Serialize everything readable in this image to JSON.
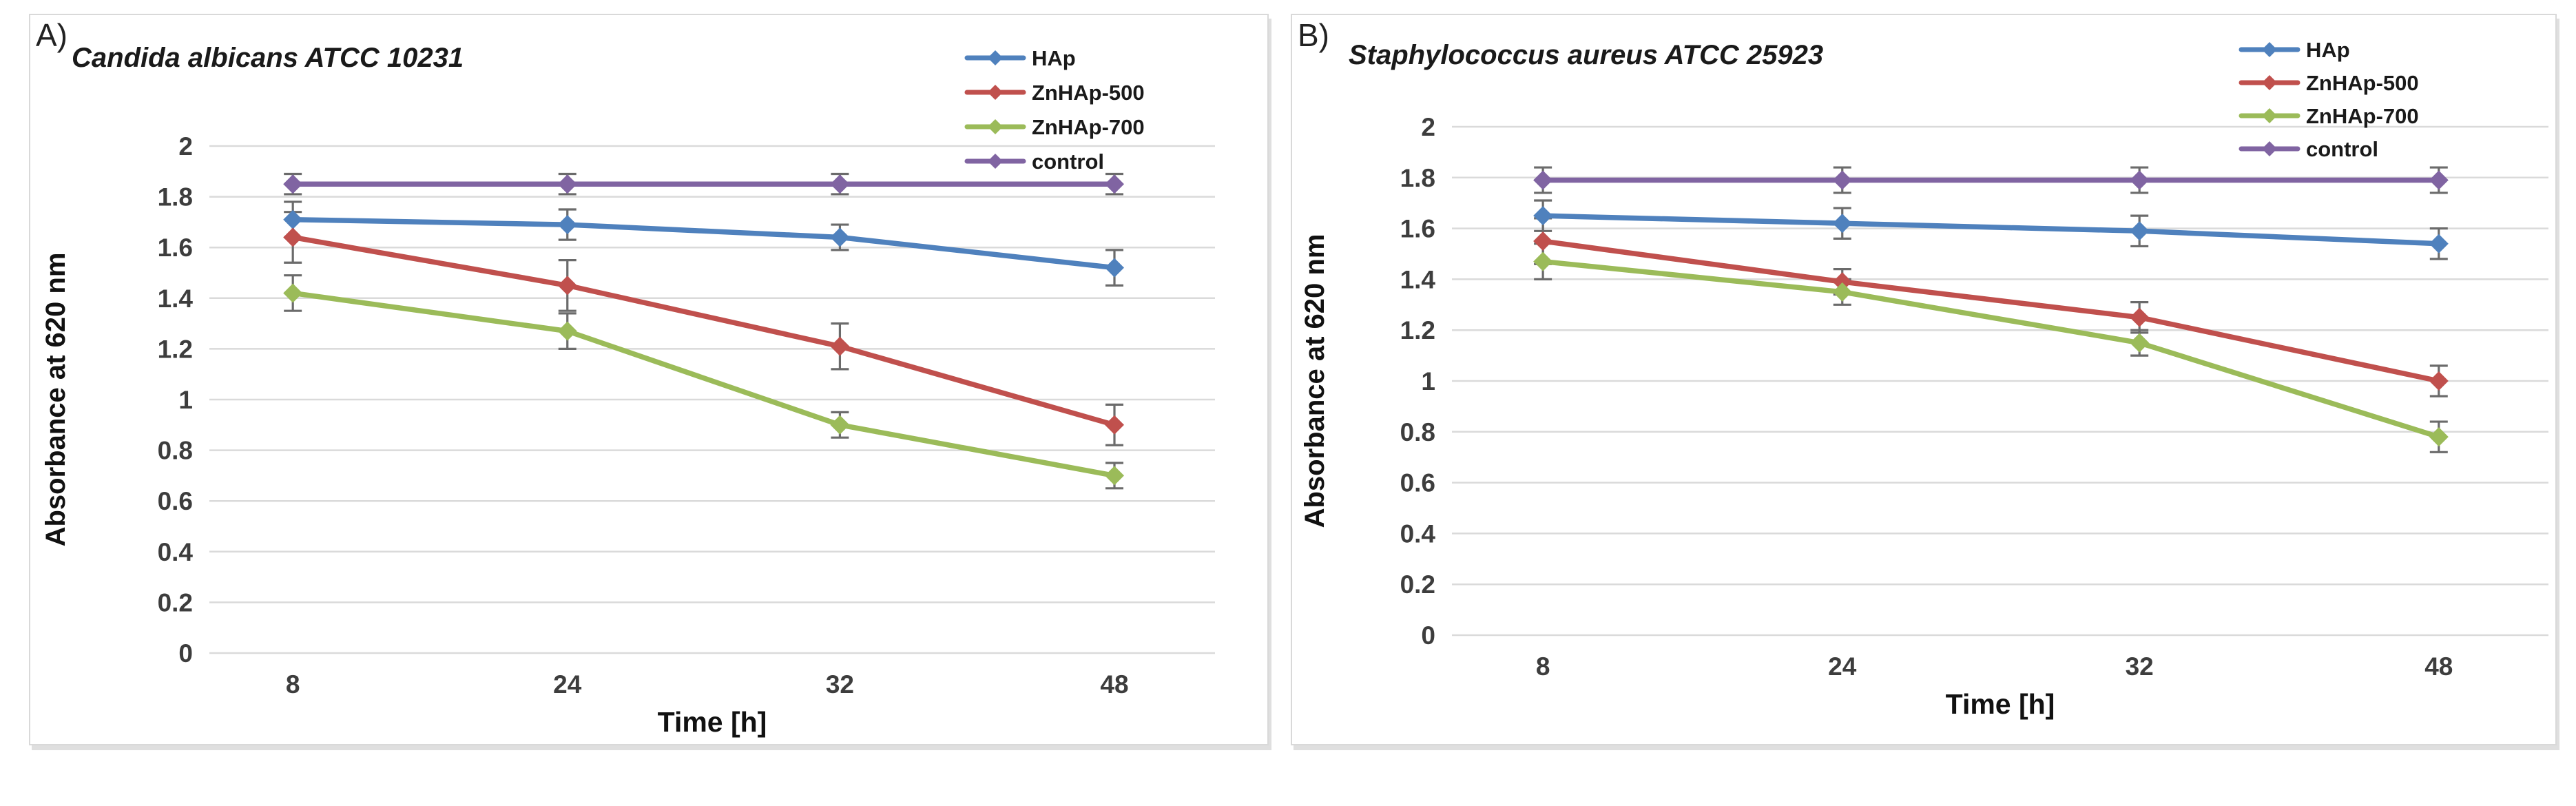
{
  "figure_type": "two-panel line chart with error bars",
  "chart_data": [
    {
      "type": "line",
      "panel_label": "A)",
      "title": "Candida albicans ATCC 10231",
      "xlabel": "Time [h]",
      "ylabel": "Absorbance at 620 nm",
      "categories": [
        "8",
        "24",
        "32",
        "48"
      ],
      "ylim": [
        0,
        2
      ],
      "yticks": [
        "2",
        "1.8",
        "1.6",
        "1.4",
        "1.2",
        "1",
        "0.8",
        "0.6",
        "0.4",
        "0.2",
        "0"
      ],
      "grid": "horizontal",
      "legend_position": "top-right",
      "marker": "diamond",
      "series": [
        {
          "name": "HAp",
          "color": "#4F81BD",
          "values": [
            1.71,
            1.69,
            1.64,
            1.52
          ],
          "errors": [
            0.07,
            0.06,
            0.05,
            0.07
          ]
        },
        {
          "name": "ZnHAp-500",
          "color": "#C0504D",
          "values": [
            1.64,
            1.45,
            1.21,
            0.9
          ],
          "errors": [
            0.1,
            0.1,
            0.09,
            0.08
          ]
        },
        {
          "name": "ZnHAp-700",
          "color": "#9BBB59",
          "values": [
            1.42,
            1.27,
            0.9,
            0.7
          ],
          "errors": [
            0.07,
            0.07,
            0.05,
            0.05
          ]
        },
        {
          "name": "control",
          "color": "#8064A2",
          "values": [
            1.85,
            1.85,
            1.85,
            1.85
          ],
          "errors": [
            0.04,
            0.04,
            0.04,
            0.04
          ]
        }
      ]
    },
    {
      "type": "line",
      "panel_label": "B)",
      "title": "Staphylococcus aureus ATCC 25923",
      "xlabel": "Time [h]",
      "ylabel": "Absorbance at 620 nm",
      "categories": [
        "8",
        "24",
        "32",
        "48"
      ],
      "ylim": [
        0,
        2
      ],
      "yticks": [
        "2",
        "1.8",
        "1.6",
        "1.4",
        "1.2",
        "1",
        "0.8",
        "0.6",
        "0.4",
        "0.2",
        "0"
      ],
      "grid": "horizontal",
      "legend_position": "top-right",
      "marker": "diamond",
      "series": [
        {
          "name": "HAp",
          "color": "#4F81BD",
          "values": [
            1.65,
            1.62,
            1.59,
            1.54
          ],
          "errors": [
            0.06,
            0.06,
            0.06,
            0.06
          ]
        },
        {
          "name": "ZnHAp-500",
          "color": "#C0504D",
          "values": [
            1.55,
            1.39,
            1.25,
            1.0
          ],
          "errors": [
            0.09,
            0.05,
            0.06,
            0.06
          ]
        },
        {
          "name": "ZnHAp-700",
          "color": "#9BBB59",
          "values": [
            1.47,
            1.35,
            1.15,
            0.78
          ],
          "errors": [
            0.07,
            0.05,
            0.05,
            0.06
          ]
        },
        {
          "name": "control",
          "color": "#8064A2",
          "values": [
            1.79,
            1.79,
            1.79,
            1.79
          ],
          "errors": [
            0.05,
            0.05,
            0.05,
            0.05
          ]
        }
      ]
    }
  ],
  "colors": {
    "grid": "#dadada",
    "error_bar": "#6b6b6b",
    "tick_text": "#3d3d3d",
    "axis_title_text": "#111111",
    "legend_text": "#1a1a1a",
    "panel_border": "#d9d9d9"
  }
}
